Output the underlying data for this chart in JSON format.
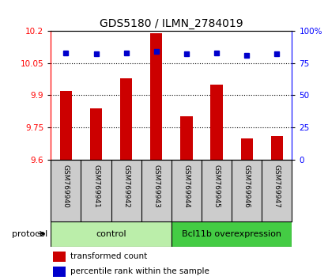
{
  "title": "GDS5180 / ILMN_2784019",
  "samples": [
    "GSM769940",
    "GSM769941",
    "GSM769942",
    "GSM769943",
    "GSM769944",
    "GSM769945",
    "GSM769946",
    "GSM769947"
  ],
  "transformed_counts": [
    9.92,
    9.84,
    9.98,
    10.19,
    9.8,
    9.95,
    9.7,
    9.71
  ],
  "percentile_ranks": [
    83,
    82,
    83,
    84,
    82,
    83,
    81,
    82
  ],
  "ylim_left": [
    9.6,
    10.2
  ],
  "ylim_right": [
    0,
    100
  ],
  "yticks_left": [
    9.6,
    9.75,
    9.9,
    10.05,
    10.2
  ],
  "yticks_right": [
    0,
    25,
    50,
    75,
    100
  ],
  "ytick_labels_left": [
    "9.6",
    "9.75",
    "9.9",
    "10.05",
    "10.2"
  ],
  "ytick_labels_right": [
    "0",
    "25",
    "50",
    "75",
    "100%"
  ],
  "bar_color": "#cc0000",
  "dot_color": "#0000cc",
  "control_light_color": "#bbeeaa",
  "overexpression_color": "#44cc44",
  "control_label": "control",
  "overexpression_label": "Bcl11b overexpression",
  "protocol_label": "protocol",
  "control_samples": 4,
  "legend_bar_label": "transformed count",
  "legend_dot_label": "percentile rank within the sample",
  "background_color": "#ffffff",
  "sample_box_color": "#cccccc"
}
